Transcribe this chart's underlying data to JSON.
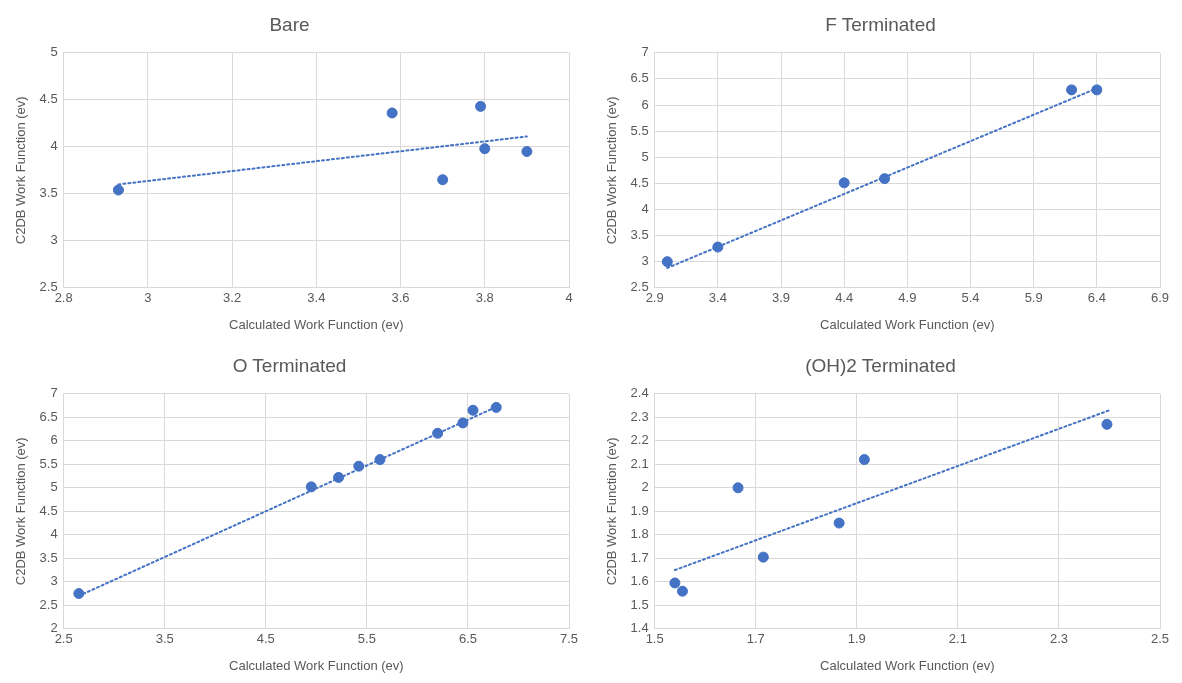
{
  "chart_data": [
    {
      "type": "scatter",
      "title": "Bare",
      "xlabel": "Calculated Work Function (ev)",
      "ylabel": "C2DB Work Function (ev)",
      "xlim": [
        2.8,
        4
      ],
      "xticks": [
        2.8,
        3,
        3.2,
        3.4,
        3.6,
        3.8,
        4
      ],
      "ylim": [
        2.5,
        5
      ],
      "yticks": [
        2.5,
        3,
        3.5,
        4,
        4.5,
        5
      ],
      "grid": true,
      "legend": false,
      "series": [
        {
          "type": "scatter",
          "color": "#4472c4",
          "marker": "circle",
          "x": [
            2.93,
            3.58,
            3.7,
            3.79,
            3.8,
            3.9
          ],
          "values": [
            3.54,
            4.36,
            3.65,
            4.43,
            3.98,
            3.95
          ]
        },
        {
          "type": "line",
          "color": "#4472c4",
          "line_style": "dotted",
          "x": [
            2.93,
            3.9
          ],
          "values": [
            3.6,
            4.11
          ]
        }
      ]
    },
    {
      "type": "scatter",
      "title": "F Terminated",
      "xlabel": "Calculated Work Function (ev)",
      "ylabel": "C2DB Work Function (ev)",
      "xlim": [
        2.9,
        6.9
      ],
      "xticks": [
        2.9,
        3.4,
        3.9,
        4.4,
        4.9,
        5.4,
        5.9,
        6.4,
        6.9
      ],
      "ylim": [
        2.5,
        7
      ],
      "yticks": [
        2.5,
        3,
        3.5,
        4,
        4.5,
        5,
        5.5,
        6,
        6.5,
        7
      ],
      "grid": true,
      "legend": false,
      "series": [
        {
          "type": "scatter",
          "color": "#4472c4",
          "marker": "circle",
          "x": [
            3.0,
            3.4,
            4.4,
            4.72,
            6.2,
            6.4
          ],
          "values": [
            3.0,
            3.28,
            4.51,
            4.59,
            6.29,
            6.29
          ]
        },
        {
          "type": "line",
          "color": "#4472c4",
          "line_style": "dotted",
          "x": [
            3.0,
            6.4
          ],
          "values": [
            2.88,
            6.32
          ]
        }
      ]
    },
    {
      "type": "scatter",
      "title": "O Terminated",
      "xlabel": "Calculated Work Function (ev)",
      "ylabel": "C2DB Work Function (ev)",
      "xlim": [
        2.5,
        7.5
      ],
      "xticks": [
        2.5,
        3.5,
        4.5,
        5.5,
        6.5,
        7.5
      ],
      "ylim": [
        2,
        7
      ],
      "yticks": [
        2,
        2.5,
        3,
        3.5,
        4,
        4.5,
        5,
        5.5,
        6,
        6.5,
        7
      ],
      "grid": true,
      "legend": false,
      "series": [
        {
          "type": "scatter",
          "color": "#4472c4",
          "marker": "circle",
          "x": [
            2.65,
            4.95,
            5.22,
            5.42,
            5.63,
            6.2,
            6.45,
            6.55,
            6.78
          ],
          "values": [
            2.75,
            5.02,
            5.22,
            5.46,
            5.6,
            6.16,
            6.38,
            6.65,
            6.71
          ]
        },
        {
          "type": "line",
          "color": "#4472c4",
          "line_style": "dotted",
          "x": [
            2.65,
            6.78
          ],
          "values": [
            2.7,
            6.72
          ]
        }
      ]
    },
    {
      "type": "scatter",
      "title": "(OH)2 Terminated",
      "xlabel": "Calculated Work Function (ev)",
      "ylabel": "C2DB Work Function (ev)",
      "xlim": [
        1.5,
        2.5
      ],
      "xticks": [
        1.5,
        1.7,
        1.9,
        2.1,
        2.3,
        2.5
      ],
      "ylim": [
        1.4,
        2.4
      ],
      "yticks": [
        1.4,
        1.5,
        1.6,
        1.7,
        1.8,
        1.9,
        2,
        2.1,
        2.2,
        2.3,
        2.4
      ],
      "grid": true,
      "legend": false,
      "series": [
        {
          "type": "scatter",
          "color": "#4472c4",
          "marker": "circle",
          "x": [
            1.54,
            1.555,
            1.665,
            1.715,
            1.865,
            1.915,
            2.395
          ],
          "values": [
            1.595,
            1.56,
            2.0,
            1.705,
            1.85,
            2.12,
            2.27
          ]
        },
        {
          "type": "line",
          "color": "#4472c4",
          "line_style": "dotted",
          "x": [
            1.54,
            2.4
          ],
          "values": [
            1.65,
            2.33
          ]
        }
      ]
    }
  ]
}
